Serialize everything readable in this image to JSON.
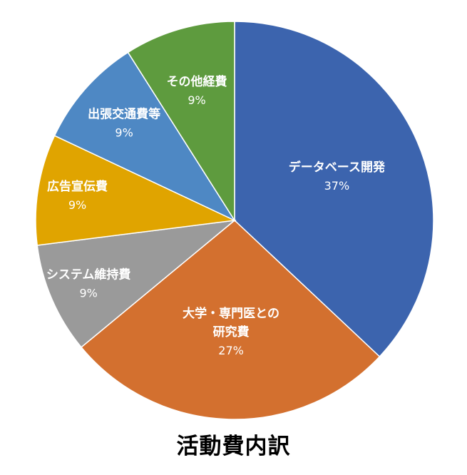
{
  "chart_data": {
    "type": "pie",
    "title": "活動費内訳",
    "slices": [
      {
        "label_lines": [
          "データベース開発"
        ],
        "percent_label": "37%",
        "value": 37,
        "color": "#3C64AE"
      },
      {
        "label_lines": [
          "大学・専門医との",
          "研究費"
        ],
        "percent_label": "27%",
        "value": 27,
        "color": "#D3702F"
      },
      {
        "label_lines": [
          "システム維持費"
        ],
        "percent_label": "9%",
        "value": 9,
        "color": "#9A9A9A"
      },
      {
        "label_lines": [
          "広告宣伝費"
        ],
        "percent_label": "9%",
        "value": 9,
        "color": "#E0A400"
      },
      {
        "label_lines": [
          "出張交通費等"
        ],
        "percent_label": "9%",
        "value": 9,
        "color": "#4E88C4"
      },
      {
        "label_lines": [
          "その他経費"
        ],
        "percent_label": "9%",
        "value": 9,
        "color": "#5E9B3E"
      }
    ]
  }
}
